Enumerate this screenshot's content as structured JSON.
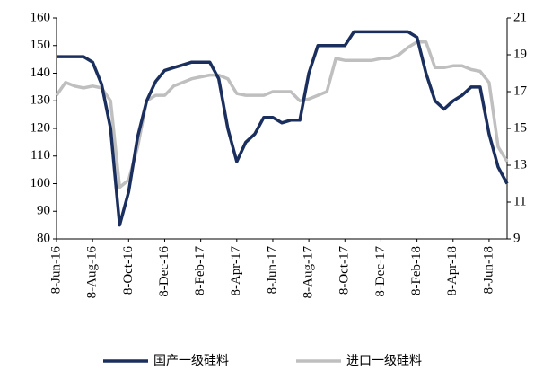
{
  "chart_data": {
    "type": "line",
    "categories": [
      "8-Jun-16",
      null,
      null,
      null,
      "8-Aug-16",
      null,
      null,
      null,
      "8-Oct-16",
      null,
      null,
      null,
      "8-Dec-16",
      null,
      null,
      null,
      "8-Feb-17",
      null,
      null,
      null,
      "8-Apr-17",
      null,
      null,
      null,
      "8-Jun-17",
      null,
      null,
      null,
      "8-Aug-17",
      null,
      null,
      null,
      "8-Oct-17",
      null,
      null,
      null,
      "8-Dec-17",
      null,
      null,
      null,
      "8-Feb-18",
      null,
      null,
      null,
      "8-Apr-18",
      null,
      null,
      null,
      "8-Jun-18",
      null,
      null
    ],
    "series": [
      {
        "name": "国产一级硅料",
        "color": "#1b2f5e",
        "values": [
          146,
          146,
          146,
          146,
          144,
          136,
          120,
          85,
          97,
          117,
          130,
          137,
          141,
          142,
          143,
          144,
          144,
          144,
          138,
          120,
          108,
          115,
          118,
          124,
          124,
          122,
          123,
          123,
          140,
          150,
          150,
          150,
          150,
          155,
          155,
          155,
          155,
          155,
          155,
          155,
          153,
          140,
          130,
          127,
          130,
          132,
          135,
          135,
          118,
          106,
          100
        ]
      },
      {
        "name": "进口一级硅料",
        "color": "#bfbfbf",
        "axis": "y2",
        "values": [
          16.8,
          17.5,
          17.3,
          17.2,
          17.3,
          17.2,
          16.5,
          11.8,
          12.2,
          14.0,
          16.5,
          16.8,
          16.8,
          17.3,
          17.5,
          17.7,
          17.8,
          17.9,
          17.9,
          17.7,
          16.9,
          16.8,
          16.8,
          16.8,
          17.0,
          17.0,
          17.0,
          16.5,
          16.6,
          16.8,
          17.0,
          18.8,
          18.7,
          18.7,
          18.7,
          18.7,
          18.8,
          18.8,
          19.0,
          19.4,
          19.7,
          19.7,
          18.3,
          18.3,
          18.4,
          18.4,
          18.2,
          18.1,
          17.5,
          14.0,
          13.2
        ]
      }
    ],
    "ylim": [
      80,
      160
    ],
    "yticks": [
      80,
      90,
      100,
      110,
      120,
      130,
      140,
      150,
      160
    ],
    "y2lim": [
      9,
      21
    ],
    "y2ticks": [
      9,
      11,
      13,
      15,
      17,
      19,
      21
    ],
    "legend": "bottom"
  }
}
